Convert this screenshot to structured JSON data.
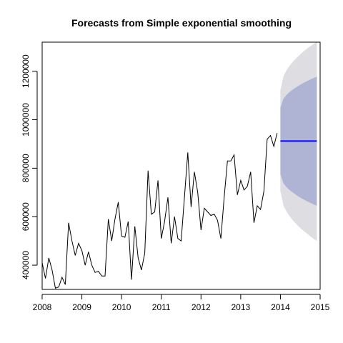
{
  "chart_data": {
    "type": "line",
    "title": "Forecasts from Simple exponential smoothing",
    "xlabel": "",
    "ylabel": "",
    "xlim": [
      2008,
      2015
    ],
    "ylim": [
      300000,
      1320000
    ],
    "x_ticks": [
      2008,
      2009,
      2010,
      2011,
      2012,
      2013,
      2014,
      2015
    ],
    "y_ticks": [
      400000,
      600000,
      800000,
      1000000,
      1200000
    ],
    "grid": false,
    "legend": "none",
    "history": {
      "start": 2008,
      "frequency": 12,
      "values": [
        410000,
        345000,
        430000,
        380000,
        305000,
        310000,
        350000,
        320000,
        575000,
        500000,
        440000,
        490000,
        460000,
        400000,
        455000,
        400000,
        370000,
        375000,
        355000,
        355000,
        590000,
        500000,
        590000,
        660000,
        520000,
        515000,
        580000,
        340000,
        560000,
        430000,
        380000,
        450000,
        790000,
        610000,
        620000,
        750000,
        510000,
        580000,
        680000,
        490000,
        600000,
        510000,
        500000,
        680000,
        865000,
        640000,
        785000,
        700000,
        545000,
        635000,
        620000,
        605000,
        610000,
        585000,
        510000,
        680000,
        830000,
        830000,
        855000,
        690000,
        750000,
        710000,
        725000,
        785000,
        575000,
        645000,
        630000,
        705000,
        920000,
        935000,
        890000,
        945000
      ]
    },
    "forecast": {
      "start": 2014,
      "end": 2014.9167,
      "point": 912000,
      "ci80": {
        "lower_start": 775000,
        "lower_end": 645000,
        "upper_start": 1050000,
        "upper_end": 1178000
      },
      "ci95": {
        "lower_start": 705000,
        "lower_end": 500000,
        "upper_start": 1122000,
        "upper_end": 1322000
      }
    },
    "colors": {
      "history": "#000000",
      "forecast": "#0000ff",
      "ci80": "#b0b4d4",
      "ci95": "#dddde2",
      "frame": "#000000"
    }
  }
}
